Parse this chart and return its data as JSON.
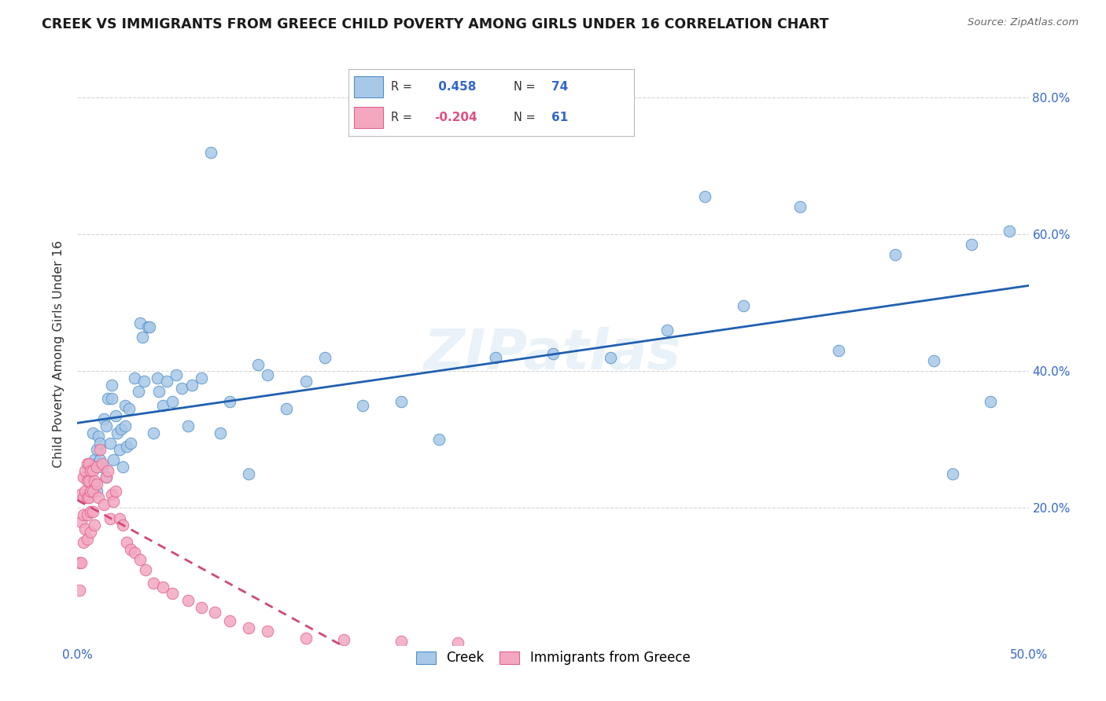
{
  "title": "CREEK VS IMMIGRANTS FROM GREECE CHILD POVERTY AMONG GIRLS UNDER 16 CORRELATION CHART",
  "source": "Source: ZipAtlas.com",
  "ylabel": "Child Poverty Among Girls Under 16",
  "xlim": [
    0.0,
    0.5
  ],
  "ylim": [
    0.0,
    0.85
  ],
  "xticks": [
    0.0,
    0.1,
    0.2,
    0.3,
    0.4,
    0.5
  ],
  "xtick_labels": [
    "0.0%",
    "",
    "",
    "",
    "",
    "50.0%"
  ],
  "yticks": [
    0.0,
    0.2,
    0.4,
    0.6,
    0.8
  ],
  "ytick_labels_right": [
    "",
    "20.0%",
    "40.0%",
    "60.0%",
    "80.0%"
  ],
  "blue_R": 0.458,
  "blue_N": 74,
  "pink_R": -0.204,
  "pink_N": 61,
  "blue_color": "#a8c8e8",
  "pink_color": "#f4a8c0",
  "blue_edge_color": "#5090c8",
  "pink_edge_color": "#e06090",
  "blue_line_color": "#2060b0",
  "pink_line_color": "#d04878",
  "watermark": "ZIPatlas",
  "blue_points_x": [
    0.005,
    0.007,
    0.008,
    0.009,
    0.009,
    0.01,
    0.01,
    0.01,
    0.011,
    0.012,
    0.012,
    0.013,
    0.014,
    0.015,
    0.015,
    0.016,
    0.017,
    0.018,
    0.018,
    0.019,
    0.02,
    0.021,
    0.022,
    0.023,
    0.024,
    0.025,
    0.025,
    0.026,
    0.027,
    0.028,
    0.03,
    0.032,
    0.033,
    0.034,
    0.035,
    0.037,
    0.038,
    0.04,
    0.042,
    0.043,
    0.045,
    0.047,
    0.05,
    0.052,
    0.055,
    0.058,
    0.06,
    0.065,
    0.07,
    0.075,
    0.08,
    0.09,
    0.095,
    0.1,
    0.11,
    0.12,
    0.13,
    0.15,
    0.17,
    0.19,
    0.22,
    0.25,
    0.28,
    0.31,
    0.33,
    0.35,
    0.38,
    0.4,
    0.43,
    0.45,
    0.46,
    0.47,
    0.48,
    0.49
  ],
  "blue_points_y": [
    0.245,
    0.225,
    0.31,
    0.27,
    0.235,
    0.285,
    0.265,
    0.225,
    0.305,
    0.295,
    0.27,
    0.26,
    0.33,
    0.32,
    0.245,
    0.36,
    0.295,
    0.38,
    0.36,
    0.27,
    0.335,
    0.31,
    0.285,
    0.315,
    0.26,
    0.35,
    0.32,
    0.29,
    0.345,
    0.295,
    0.39,
    0.37,
    0.47,
    0.45,
    0.385,
    0.465,
    0.465,
    0.31,
    0.39,
    0.37,
    0.35,
    0.385,
    0.355,
    0.395,
    0.375,
    0.32,
    0.38,
    0.39,
    0.72,
    0.31,
    0.355,
    0.25,
    0.41,
    0.395,
    0.345,
    0.385,
    0.42,
    0.35,
    0.355,
    0.3,
    0.42,
    0.425,
    0.42,
    0.46,
    0.655,
    0.495,
    0.64,
    0.43,
    0.57,
    0.415,
    0.25,
    0.585,
    0.355,
    0.605
  ],
  "pink_points_x": [
    0.001,
    0.001,
    0.002,
    0.002,
    0.002,
    0.003,
    0.003,
    0.003,
    0.003,
    0.004,
    0.004,
    0.004,
    0.005,
    0.005,
    0.005,
    0.005,
    0.005,
    0.006,
    0.006,
    0.006,
    0.007,
    0.007,
    0.007,
    0.007,
    0.008,
    0.008,
    0.008,
    0.009,
    0.009,
    0.01,
    0.01,
    0.011,
    0.012,
    0.013,
    0.014,
    0.015,
    0.016,
    0.017,
    0.018,
    0.019,
    0.02,
    0.022,
    0.024,
    0.026,
    0.028,
    0.03,
    0.033,
    0.036,
    0.04,
    0.045,
    0.05,
    0.058,
    0.065,
    0.072,
    0.08,
    0.09,
    0.1,
    0.12,
    0.14,
    0.17,
    0.2
  ],
  "pink_points_y": [
    0.12,
    0.08,
    0.22,
    0.18,
    0.12,
    0.245,
    0.215,
    0.19,
    0.15,
    0.255,
    0.225,
    0.17,
    0.265,
    0.24,
    0.215,
    0.19,
    0.155,
    0.265,
    0.24,
    0.215,
    0.255,
    0.225,
    0.195,
    0.165,
    0.255,
    0.225,
    0.195,
    0.24,
    0.175,
    0.26,
    0.235,
    0.215,
    0.285,
    0.265,
    0.205,
    0.245,
    0.255,
    0.185,
    0.22,
    0.21,
    0.225,
    0.185,
    0.175,
    0.15,
    0.14,
    0.135,
    0.125,
    0.11,
    0.09,
    0.085,
    0.075,
    0.065,
    0.055,
    0.048,
    0.035,
    0.025,
    0.02,
    0.01,
    0.008,
    0.005,
    0.003
  ]
}
